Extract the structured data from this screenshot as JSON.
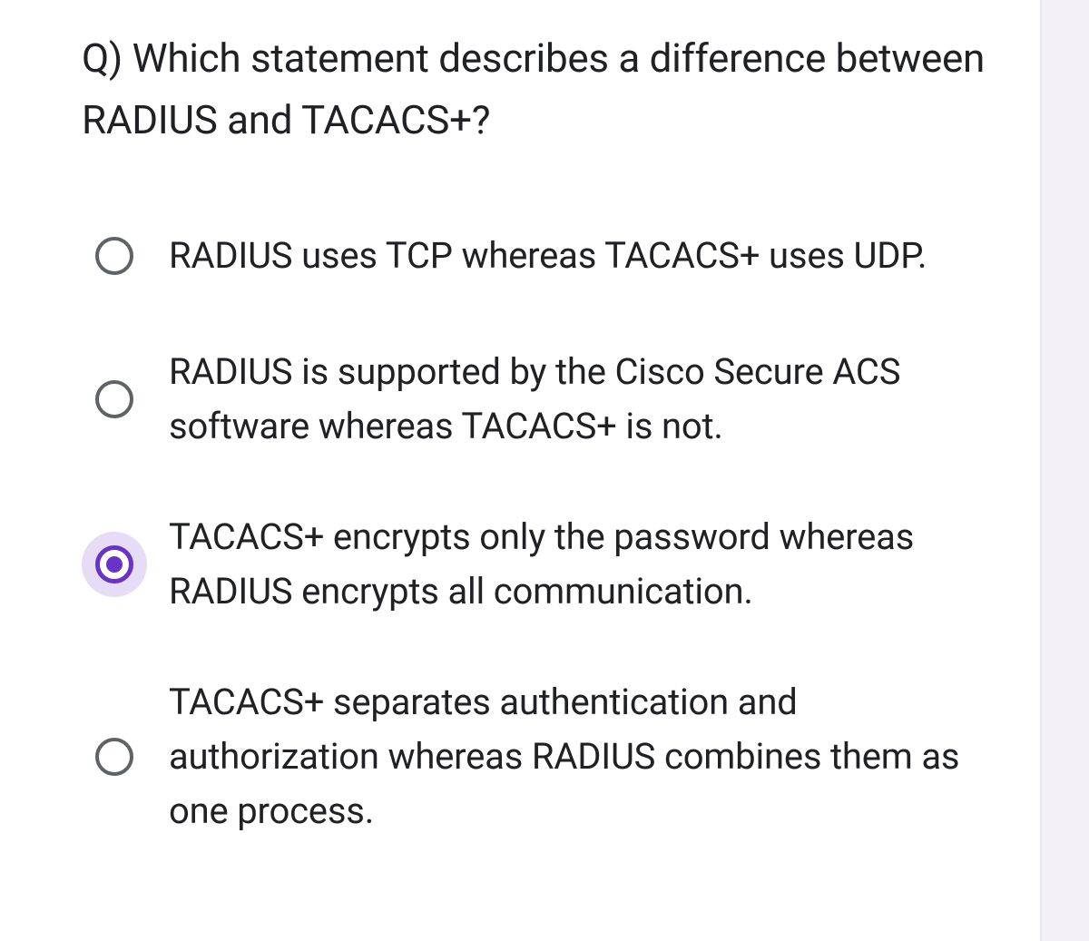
{
  "question": {
    "text": "Q) Which statement describes a difference between RADIUS and TACACS+?"
  },
  "options": [
    {
      "label": "RADIUS uses TCP whereas TACACS+ uses UDP.",
      "selected": false
    },
    {
      "label": "RADIUS is supported by the Cisco Secure ACS software whereas TACACS+ is not.",
      "selected": false
    },
    {
      "label": "TACACS+ encrypts only the password whereas RADIUS encrypts all communication.",
      "selected": true
    },
    {
      "label": "TACACS+ separates authentication and authorization whereas RADIUS combines them as one process.",
      "selected": false
    }
  ],
  "colors": {
    "background": "#f3f0f8",
    "card_background": "#ffffff",
    "text": "#202124",
    "radio_border": "#5f6368",
    "radio_selected": "#6a33c8",
    "radio_halo": "#e6dcf5"
  },
  "typography": {
    "question_fontsize": 44,
    "option_fontsize": 40,
    "font_family": "Roboto"
  }
}
